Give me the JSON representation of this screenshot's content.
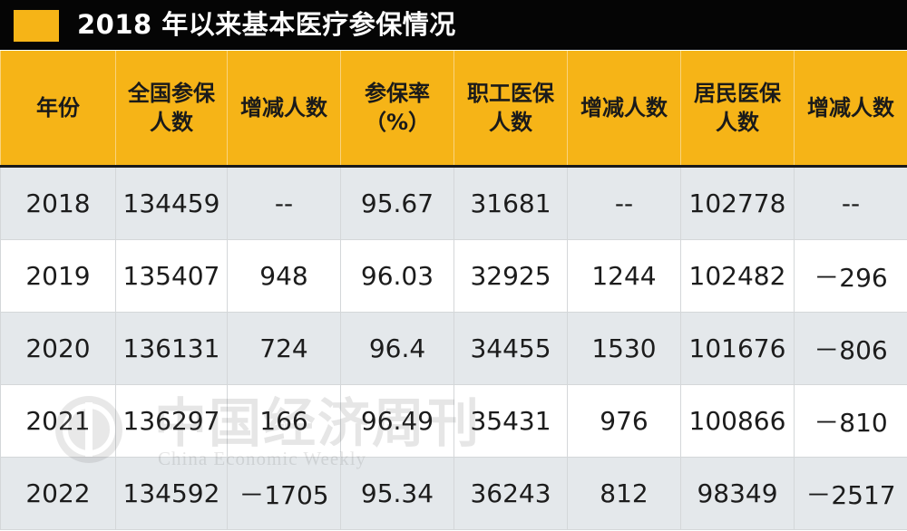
{
  "title": "2018 年以来基本医疗参保情况",
  "colors": {
    "header_bg": "#f6b417",
    "title_bg": "#050505",
    "title_accent": "#f6b417",
    "row_shade": "#e4e8eb",
    "row_plain": "#ffffff"
  },
  "table": {
    "headers": [
      [
        "年份"
      ],
      [
        "全国参保",
        "人数"
      ],
      [
        "增减人数"
      ],
      [
        "参保率",
        "（%）"
      ],
      [
        "职工医保",
        "人数"
      ],
      [
        "增减人数"
      ],
      [
        "居民医保",
        "人数"
      ],
      [
        "增减人数"
      ]
    ],
    "rows": [
      [
        "2018",
        "134459",
        "--",
        "95.67",
        "31681",
        "--",
        "102778",
        "--"
      ],
      [
        "2019",
        "135407",
        "948",
        "96.03",
        "32925",
        "1244",
        "102482",
        "－296"
      ],
      [
        "2020",
        "136131",
        "724",
        "96.4",
        "34455",
        "1530",
        "101676",
        "－806"
      ],
      [
        "2021",
        "136297",
        "166",
        "96.49",
        "35431",
        "976",
        "100866",
        "－810"
      ],
      [
        "2022",
        "134592",
        "－1705",
        "95.34",
        "36243",
        "812",
        "98349",
        "－2517"
      ]
    ]
  },
  "watermark": {
    "cn": "中国经济周刊",
    "en": "China Economic Weekly",
    "icon": "seal-logo-icon"
  }
}
